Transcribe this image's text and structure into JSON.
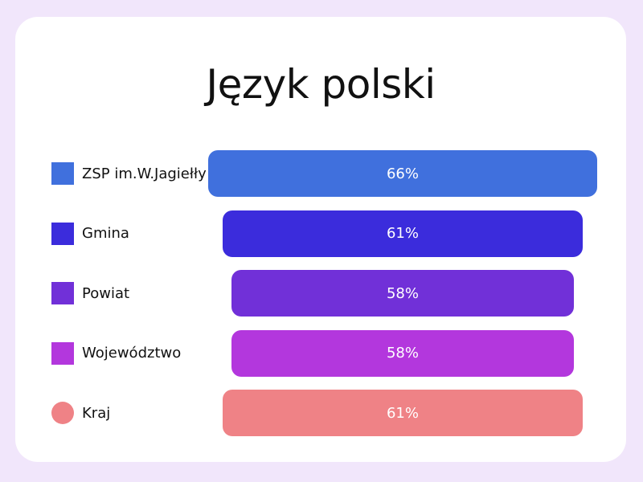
{
  "chart_data": {
    "type": "bar",
    "orientation": "horizontal",
    "alignment": "centered",
    "title": "Język polski",
    "categories": [
      "ZSP im.W.Jagiełły",
      "Gmina",
      "Powiat",
      "Województwo",
      "Kraj"
    ],
    "values": [
      66,
      61,
      58,
      58,
      61
    ],
    "value_labels": [
      "66%",
      "61%",
      "58%",
      "58%",
      "61%"
    ],
    "colors": [
      "#4070dd",
      "#3b2cdc",
      "#7130d8",
      "#b337dd",
      "#ef8286"
    ],
    "legend_shapes": [
      "square",
      "square",
      "square",
      "square",
      "circle"
    ],
    "legend_position": "left",
    "grid": false
  }
}
